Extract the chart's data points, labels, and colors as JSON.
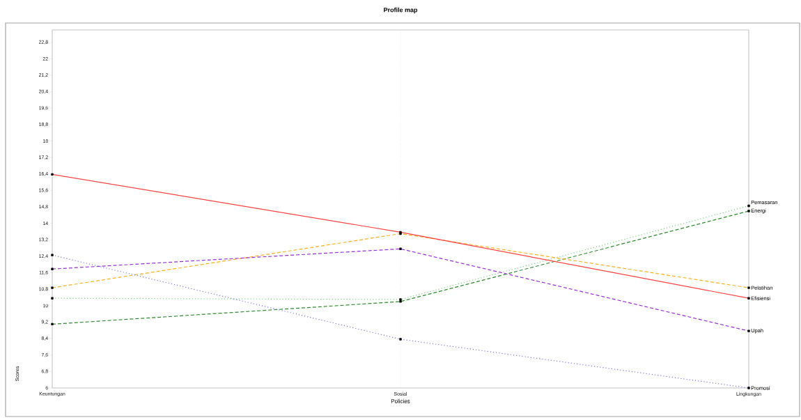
{
  "chart_data": {
    "type": "line",
    "title": "Profile map",
    "xlabel": "Policies",
    "ylabel": "Scores",
    "categories": [
      "Keuntungan",
      "Sosial",
      "Lingkungan"
    ],
    "series": [
      {
        "name": "Pemasaran",
        "color": "#7fcf7f",
        "line_style": "dotted",
        "values": [
          10.36,
          10.3,
          14.85
        ]
      },
      {
        "name": "Energi",
        "color": "#2e8b2e",
        "line_style": "dashed",
        "values": [
          9.1,
          10.2,
          14.6
        ]
      },
      {
        "name": "Pelatihan",
        "color": "#ffb020",
        "line_style": "dashed",
        "values": [
          10.87,
          13.5,
          10.87
        ]
      },
      {
        "name": "Efisiensi",
        "color": "#ff4040",
        "line_style": "solid",
        "values": [
          16.38,
          13.57,
          10.36
        ]
      },
      {
        "name": "Upah",
        "color": "#9a2fd8",
        "line_style": "dashed",
        "values": [
          11.78,
          12.76,
          8.77
        ]
      },
      {
        "name": "Promosi",
        "color": "#7a7ae8",
        "line_style": "dotted",
        "values": [
          12.46,
          8.37,
          6.0
        ]
      }
    ],
    "ylim": [
      6,
      23.4
    ],
    "yticks": [
      6,
      {
        "value": 6.8,
        "label": "6,8"
      },
      {
        "value": 7.6,
        "label": "7,6"
      },
      {
        "value": 8.4,
        "label": "8,4"
      },
      {
        "value": 9.2,
        "label": "9,2"
      },
      10,
      {
        "value": 10.8,
        "label": "10,8"
      },
      {
        "value": 11.6,
        "label": "11,6"
      },
      {
        "value": 12.4,
        "label": "12,4"
      },
      {
        "value": 13.2,
        "label": "13,2"
      },
      14,
      {
        "value": 14.8,
        "label": "14,8"
      },
      {
        "value": 15.6,
        "label": "15,6"
      },
      {
        "value": 16.4,
        "label": "16,4"
      },
      {
        "value": 17.2,
        "label": "17,2"
      },
      18,
      {
        "value": 18.8,
        "label": "18,8"
      },
      {
        "value": 19.6,
        "label": "19,6"
      },
      {
        "value": 20.4,
        "label": "20,4"
      },
      {
        "value": 21.2,
        "label": "21,2"
      },
      22,
      {
        "value": 22.8,
        "label": "22,8"
      }
    ],
    "grid": "x",
    "marker": "square",
    "legend": false
  }
}
